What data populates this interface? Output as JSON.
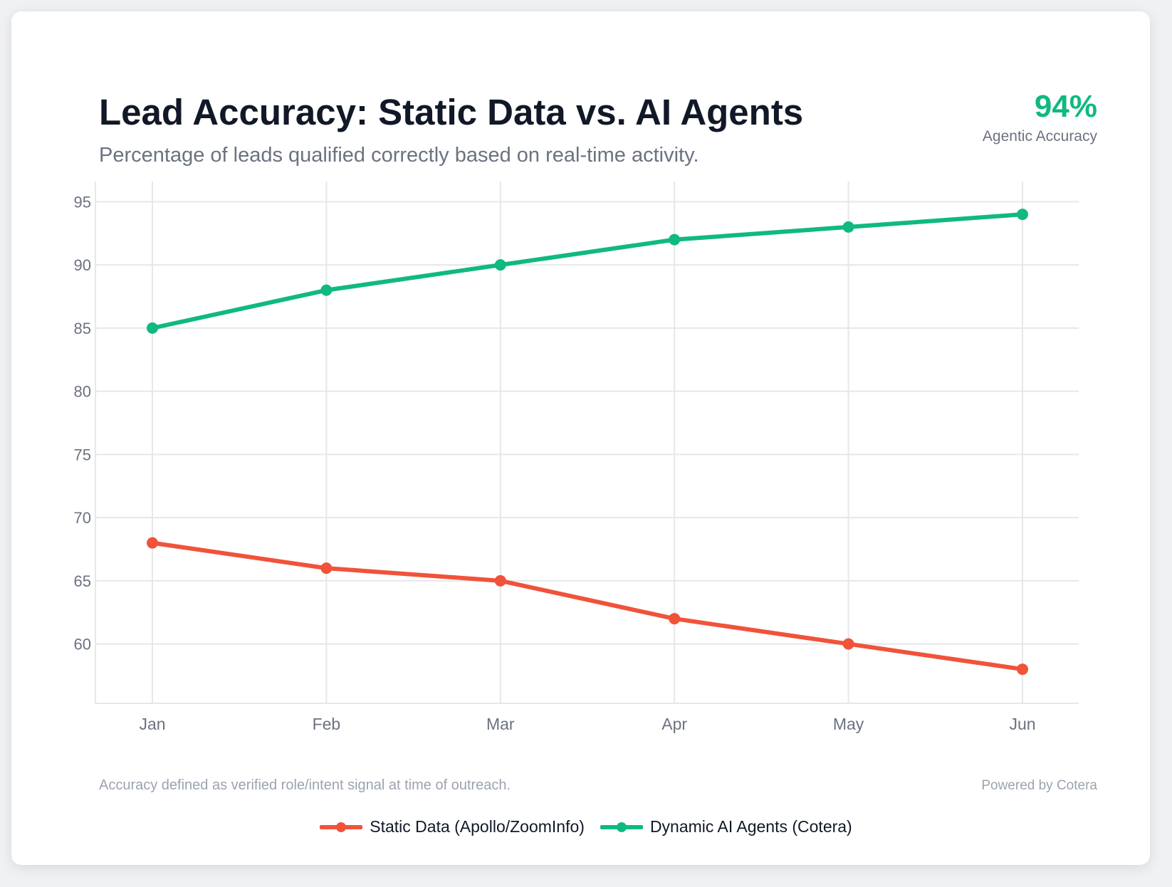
{
  "header": {
    "title": "Lead Accuracy: Static Data vs. AI Agents",
    "subtitle": "Percentage of leads qualified correctly based on real-time activity."
  },
  "kpi": {
    "value": "94%",
    "label": "Agentic Accuracy"
  },
  "footer": {
    "note": "Accuracy defined as verified role/intent signal at time of outreach.",
    "credit": "Powered by Cotera"
  },
  "chart_data": {
    "type": "line",
    "title": "Lead Accuracy: Static Data vs. AI Agents",
    "subtitle": "Percentage of leads qualified correctly based on real-time activity.",
    "categories": [
      "Jan",
      "Feb",
      "Mar",
      "Apr",
      "May",
      "Jun"
    ],
    "yticks": [
      60,
      65,
      70,
      75,
      80,
      85,
      90,
      95
    ],
    "ylim": [
      55.3,
      96.6
    ],
    "grid": true,
    "legend": "bottom",
    "series": [
      {
        "name": "Static Data (Apollo/ZoomInfo)",
        "color": "#f0533a",
        "values": [
          68,
          66,
          65,
          62,
          60,
          58
        ]
      },
      {
        "name": "Dynamic AI Agents (Cotera)",
        "color": "#10b981",
        "values": [
          85,
          88,
          90,
          92,
          93,
          94
        ]
      }
    ]
  }
}
